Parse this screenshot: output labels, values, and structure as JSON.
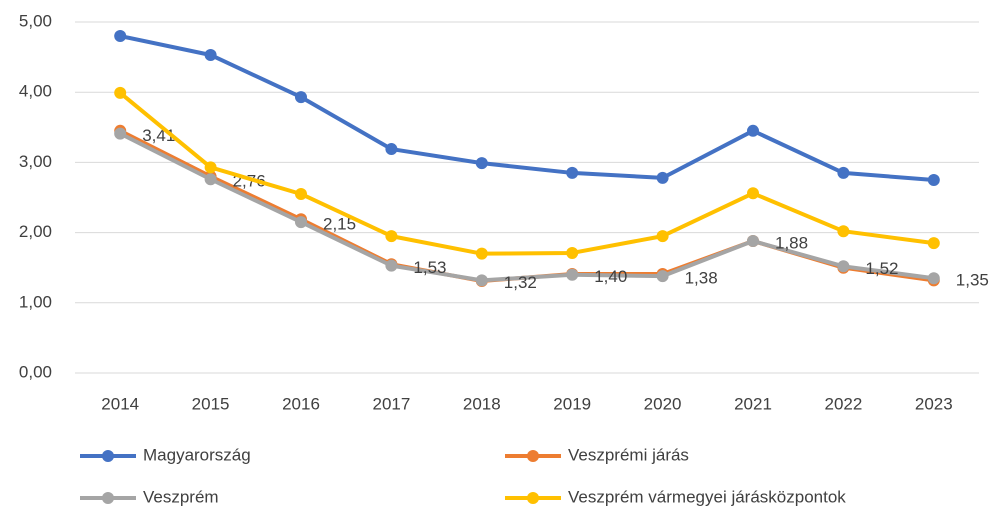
{
  "chart_data": {
    "type": "line",
    "categories": [
      "2014",
      "2015",
      "2016",
      "2017",
      "2018",
      "2019",
      "2020",
      "2021",
      "2022",
      "2023"
    ],
    "series": [
      {
        "name": "Magyarország",
        "color": "#4472c4",
        "values": [
          4.8,
          4.53,
          3.93,
          3.19,
          2.99,
          2.85,
          2.78,
          3.45,
          2.85,
          2.75
        ]
      },
      {
        "name": "Veszprémi járás",
        "color": "#ed7d31",
        "values": [
          3.45,
          2.8,
          2.19,
          1.55,
          1.31,
          1.41,
          1.41,
          1.88,
          1.5,
          1.32
        ]
      },
      {
        "name": "Veszprém",
        "color": "#a5a5a5",
        "values": [
          3.41,
          2.76,
          2.15,
          1.53,
          1.32,
          1.4,
          1.38,
          1.88,
          1.52,
          1.35
        ],
        "value_labels": [
          "3,41",
          "2,76",
          "2,15",
          "1,53",
          "1,32",
          "1,40",
          "1,38",
          "1,88",
          "1,52",
          "1,35"
        ]
      },
      {
        "name": "Veszprém vármegyei járásközpontok",
        "color": "#ffc000",
        "values": [
          3.99,
          2.93,
          2.55,
          1.95,
          1.7,
          1.71,
          1.95,
          2.56,
          2.02,
          1.85
        ]
      }
    ],
    "ylim": [
      0,
      5
    ],
    "yticks": [
      {
        "value": 0,
        "label": "0,00"
      },
      {
        "value": 1,
        "label": "1,00"
      },
      {
        "value": 2,
        "label": "2,00"
      },
      {
        "value": 3,
        "label": "3,00"
      },
      {
        "value": 4,
        "label": "4,00"
      },
      {
        "value": 5,
        "label": "5,00"
      }
    ],
    "grid": true,
    "legend": "bottom"
  }
}
